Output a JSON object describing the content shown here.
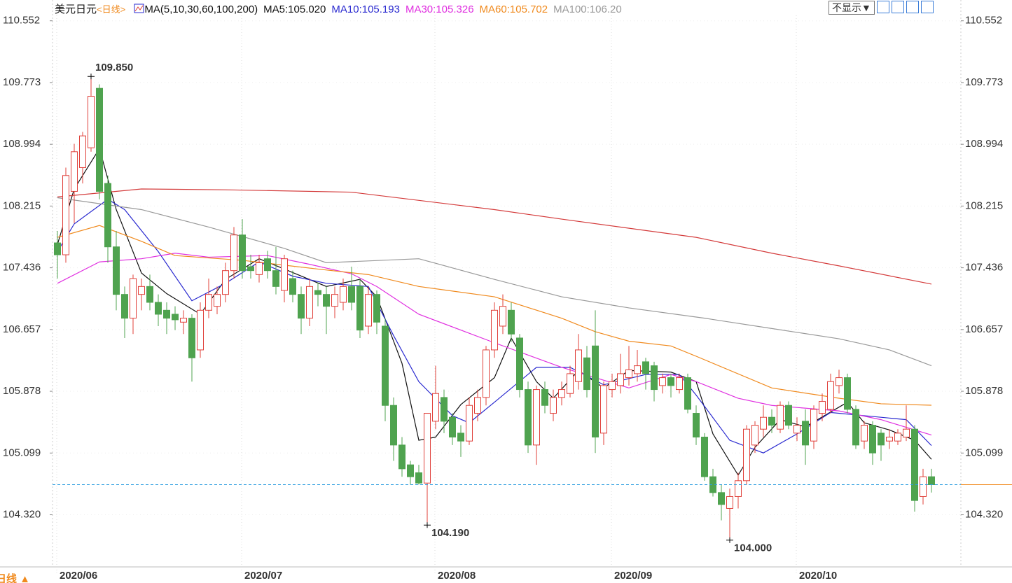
{
  "chart_data": {
    "type": "candlestick",
    "title": "美元日元",
    "period": "<日线>",
    "indicator": "MA(5,10,30,60,100,200)",
    "display_button": "不显示▼",
    "period_button": "日线 ▲",
    "up_color": "#e0403a",
    "down_color": "#4fa34f",
    "price_line_color": "#2a9de0",
    "categories": [
      "2020/06",
      null,
      null,
      null,
      null,
      null,
      null,
      null,
      null,
      null,
      null,
      null,
      null,
      null,
      null,
      null,
      null,
      null,
      null,
      null,
      null,
      null,
      "2020/07",
      null,
      null,
      null,
      null,
      null,
      null,
      null,
      null,
      null,
      null,
      null,
      null,
      null,
      null,
      null,
      null,
      null,
      null,
      null,
      null,
      null,
      null,
      "2020/08",
      null,
      null,
      null,
      null,
      null,
      null,
      null,
      null,
      null,
      null,
      null,
      null,
      null,
      null,
      null,
      null,
      null,
      null,
      null,
      null,
      "2020/09",
      null,
      null,
      null,
      null,
      null,
      null,
      null,
      null,
      null,
      null,
      null,
      null,
      null,
      null,
      null,
      null,
      null,
      null,
      null,
      null,
      null,
      "2020/10",
      null,
      null,
      null,
      null,
      null,
      null,
      null,
      null,
      null,
      null,
      null,
      null,
      null,
      null,
      null,
      null
    ],
    "open": [
      107.75,
      107.6,
      108.4,
      108.7,
      108.95,
      109.7,
      108.5,
      107.7,
      107.1,
      106.8,
      107.1,
      107.2,
      107.0,
      106.9,
      106.85,
      106.75,
      106.8,
      106.4,
      106.9,
      106.95,
      107.1,
      107.4,
      107.85,
      107.45,
      107.35,
      107.55,
      107.4,
      107.15,
      107.3,
      107.1,
      106.8,
      107.15,
      107.1,
      106.95,
      107.0,
      107.2,
      107.2,
      106.7,
      107.1,
      106.7,
      105.7,
      105.2,
      104.95,
      104.85,
      104.72,
      105.5,
      105.8,
      105.55,
      105.35,
      105.25,
      105.6,
      105.8,
      106.4,
      106.7,
      106.9,
      106.55,
      105.9,
      105.2,
      105.9,
      105.6,
      105.8,
      105.85,
      106.0,
      106.3,
      106.45,
      105.35,
      105.9,
      105.95,
      106.05,
      106.1,
      106.25,
      106.2,
      105.95,
      106.05,
      105.9,
      106.05,
      105.6,
      105.3,
      104.8,
      104.6,
      104.4,
      104.55,
      104.75,
      105.2,
      105.4,
      105.55,
      105.4,
      105.7,
      105.35,
      105.5,
      105.25,
      105.6,
      105.65,
      105.95,
      106.05,
      105.65,
      105.25,
      105.45,
      105.35,
      105.25,
      105.25,
      105.3,
      105.4,
      104.55,
      104.8
    ],
    "high": [
      107.9,
      108.7,
      109.0,
      109.15,
      109.85,
      109.75,
      108.6,
      107.9,
      107.2,
      107.35,
      107.3,
      107.35,
      107.1,
      107.0,
      106.95,
      106.9,
      106.85,
      107.0,
      107.3,
      107.2,
      107.5,
      107.95,
      108.05,
      107.6,
      107.6,
      107.65,
      107.7,
      107.6,
      107.4,
      107.2,
      107.3,
      107.25,
      107.2,
      107.2,
      107.3,
      107.45,
      107.3,
      107.2,
      107.15,
      106.8,
      105.8,
      105.3,
      105.0,
      104.95,
      105.6,
      106.2,
      105.9,
      105.6,
      105.45,
      105.8,
      105.9,
      106.45,
      107.0,
      107.1,
      107.0,
      106.6,
      106.0,
      105.95,
      106.0,
      105.9,
      106.0,
      106.2,
      106.6,
      106.45,
      106.9,
      106.0,
      106.1,
      106.35,
      106.45,
      106.4,
      106.3,
      106.25,
      106.1,
      106.1,
      106.1,
      106.1,
      105.7,
      105.35,
      104.9,
      104.7,
      104.65,
      104.85,
      105.45,
      105.5,
      105.7,
      105.65,
      105.75,
      105.75,
      105.55,
      105.65,
      105.7,
      105.85,
      106.1,
      106.15,
      106.1,
      105.7,
      105.5,
      105.5,
      105.4,
      105.4,
      105.4,
      105.7,
      105.45,
      104.9,
      104.9
    ],
    "low": [
      107.3,
      107.5,
      108.0,
      108.5,
      108.9,
      108.3,
      107.5,
      106.9,
      106.55,
      106.6,
      106.9,
      106.9,
      106.7,
      106.6,
      106.65,
      106.6,
      106.0,
      106.3,
      106.8,
      106.85,
      107.0,
      107.3,
      107.3,
      107.3,
      107.25,
      107.3,
      107.1,
      107.0,
      107.0,
      106.6,
      106.7,
      106.95,
      106.6,
      106.8,
      106.9,
      106.9,
      106.55,
      106.6,
      106.6,
      105.5,
      105.0,
      104.8,
      104.7,
      104.7,
      104.19,
      105.4,
      105.35,
      105.2,
      105.05,
      105.2,
      105.5,
      105.7,
      106.3,
      106.6,
      106.5,
      105.8,
      105.1,
      104.95,
      105.6,
      105.5,
      105.7,
      105.8,
      105.9,
      105.8,
      105.1,
      105.2,
      105.8,
      105.85,
      105.95,
      106.0,
      105.9,
      105.75,
      105.85,
      105.8,
      105.85,
      105.6,
      105.2,
      104.75,
      104.55,
      104.25,
      104.0,
      104.4,
      104.7,
      105.1,
      105.3,
      105.35,
      105.35,
      105.4,
      105.25,
      104.95,
      105.15,
      105.5,
      105.6,
      105.85,
      105.6,
      105.15,
      105.15,
      104.95,
      105.0,
      105.15,
      105.2,
      105.25,
      104.36,
      104.45,
      104.6
    ],
    "close": [
      107.6,
      108.6,
      108.9,
      109.1,
      109.6,
      108.4,
      107.7,
      107.1,
      106.8,
      107.3,
      107.2,
      107.0,
      106.85,
      106.8,
      106.78,
      106.8,
      106.3,
      106.9,
      107.1,
      107.1,
      107.4,
      107.85,
      107.4,
      107.4,
      107.5,
      107.4,
      107.2,
      107.55,
      107.1,
      106.8,
      107.2,
      107.1,
      106.95,
      107.1,
      107.2,
      107.0,
      106.65,
      107.1,
      106.75,
      105.7,
      105.2,
      104.9,
      104.8,
      104.72,
      105.6,
      105.85,
      105.5,
      105.3,
      105.25,
      105.7,
      105.8,
      106.4,
      106.9,
      106.95,
      106.6,
      105.9,
      105.2,
      105.9,
      105.7,
      105.8,
      105.9,
      106.1,
      106.4,
      105.9,
      105.3,
      105.95,
      106.0,
      106.1,
      106.15,
      106.2,
      106.1,
      105.9,
      106.05,
      105.95,
      106.05,
      105.65,
      105.3,
      104.8,
      104.6,
      104.45,
      104.55,
      104.75,
      105.4,
      105.45,
      105.55,
      105.45,
      105.7,
      105.45,
      105.45,
      105.2,
      105.65,
      105.75,
      106.0,
      106.05,
      105.65,
      105.2,
      105.45,
      105.1,
      105.2,
      105.3,
      105.35,
      105.4,
      104.5,
      104.8,
      104.7
    ],
    "ma_series": [
      {
        "name": "MA5:105.020",
        "color": "#111111",
        "x": [
          0,
          2,
          5,
          7,
          10,
          13,
          17,
          20,
          24,
          27,
          32,
          36,
          38,
          41,
          43,
          45,
          48,
          52,
          54,
          57,
          59,
          62,
          65,
          68,
          73,
          76,
          78,
          81,
          83,
          86,
          89,
          94,
          96,
          99,
          102,
          104
        ],
        "values": [
          107.73,
          108.43,
          108.94,
          108.17,
          107.37,
          107.11,
          106.85,
          107.29,
          107.55,
          107.42,
          107.2,
          107.29,
          107.07,
          106.23,
          105.26,
          105.3,
          105.71,
          106.05,
          106.55,
          106.0,
          105.79,
          106.14,
          105.92,
          106.14,
          106.12,
          106.0,
          105.34,
          104.82,
          105.17,
          105.52,
          105.43,
          105.74,
          105.48,
          105.39,
          105.26,
          105.02
        ]
      },
      {
        "name": "MA10:105.193",
        "color": "#2b2bd0",
        "x": [
          0,
          2,
          6,
          8,
          12,
          16,
          20,
          24,
          28,
          32,
          37,
          40,
          43,
          47,
          49,
          52,
          57,
          61,
          65,
          70,
          74,
          76,
          80,
          84,
          88,
          92,
          96,
          101,
          104
        ],
        "values": [
          107.64,
          107.99,
          108.3,
          108.17,
          107.64,
          107.02,
          107.24,
          107.51,
          107.33,
          107.24,
          107.2,
          106.58,
          106.0,
          105.57,
          105.48,
          105.74,
          106.18,
          106.18,
          105.96,
          106.09,
          106.09,
          105.83,
          105.26,
          105.1,
          105.34,
          105.61,
          105.57,
          105.52,
          105.193
        ]
      },
      {
        "name": "MA30:105.326",
        "color": "#e030e0",
        "x": [
          0,
          5,
          10,
          14,
          18,
          25,
          30,
          35,
          38,
          43,
          52,
          60,
          68,
          73,
          76,
          81,
          85,
          93,
          98,
          104
        ],
        "values": [
          107.24,
          107.51,
          107.55,
          107.62,
          107.57,
          107.59,
          107.48,
          107.36,
          107.2,
          106.85,
          106.49,
          106.18,
          105.92,
          106.09,
          106.0,
          105.79,
          105.7,
          105.63,
          105.52,
          105.326
        ]
      },
      {
        "name": "MA60:105.702",
        "color": "#f08a1e",
        "x": [
          0,
          5,
          10,
          14,
          22,
          31,
          37,
          43,
          52,
          60,
          64,
          68,
          73,
          76,
          85,
          93,
          98,
          104
        ],
        "values": [
          107.82,
          107.97,
          107.77,
          107.59,
          107.53,
          107.42,
          107.35,
          107.2,
          107.07,
          106.8,
          106.63,
          106.51,
          106.45,
          106.32,
          105.92,
          105.79,
          105.72,
          105.702
        ]
      },
      {
        "name": "MA100:106.20",
        "color": "#999999",
        "x": [
          0,
          10,
          18,
          27,
          32,
          43,
          52,
          60,
          68,
          77,
          85,
          93,
          99,
          104
        ],
        "values": [
          108.32,
          108.17,
          107.95,
          107.68,
          107.5,
          107.55,
          107.29,
          107.07,
          106.93,
          106.8,
          106.67,
          106.54,
          106.4,
          106.2
        ]
      },
      {
        "color": "#d43b3b",
        "x": [
          0,
          10,
          20,
          35,
          52,
          60,
          76,
          85,
          93,
          104
        ],
        "values": [
          108.33,
          108.43,
          108.42,
          108.39,
          108.17,
          108.05,
          107.82,
          107.62,
          107.46,
          107.23
        ]
      }
    ],
    "annotations": [
      {
        "label": "109.850",
        "value": 109.85,
        "index": 4,
        "color": "#e0403a"
      },
      {
        "label": "104.190",
        "value": 104.19,
        "index": 44,
        "color": "#4fa34f"
      },
      {
        "label": "104.000",
        "value": 104.0,
        "index": 80,
        "color": "#4fa34f"
      }
    ],
    "ylim": [
      103.68,
      110.62
    ],
    "yticks": [
      110.552,
      109.773,
      108.994,
      108.215,
      107.436,
      106.657,
      105.878,
      105.099,
      {
        "value": 104.32,
        "label": "104.320"
      }
    ],
    "grid": true
  }
}
